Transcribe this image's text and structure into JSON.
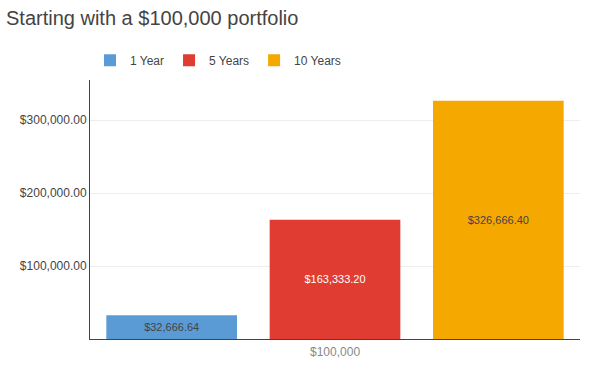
{
  "chart_data": {
    "type": "bar",
    "title": "Starting with a $100,000 portfolio",
    "categories": [
      "1 Year",
      "5 Years",
      "10 Years"
    ],
    "values": [
      32666.64,
      163333.2,
      326666.4
    ],
    "value_labels": [
      "$32,666.64",
      "$163,333.20",
      "$326,666.40"
    ],
    "data_labels": true,
    "colors": [
      "#5b9bd5",
      "#e03c31",
      "#f5a800"
    ],
    "ylim": [
      0,
      355000
    ],
    "yticks": [
      {
        "value": 100000,
        "label": "$100,000.00"
      },
      {
        "value": 200000,
        "label": "$200,000.00"
      },
      {
        "value": 300000,
        "label": "$300,000.00"
      }
    ],
    "grid": true,
    "legend": "upper left",
    "tick_labels": "y",
    "annotations": [
      {
        "text": "$100,000",
        "category": "5 Years"
      }
    ]
  }
}
